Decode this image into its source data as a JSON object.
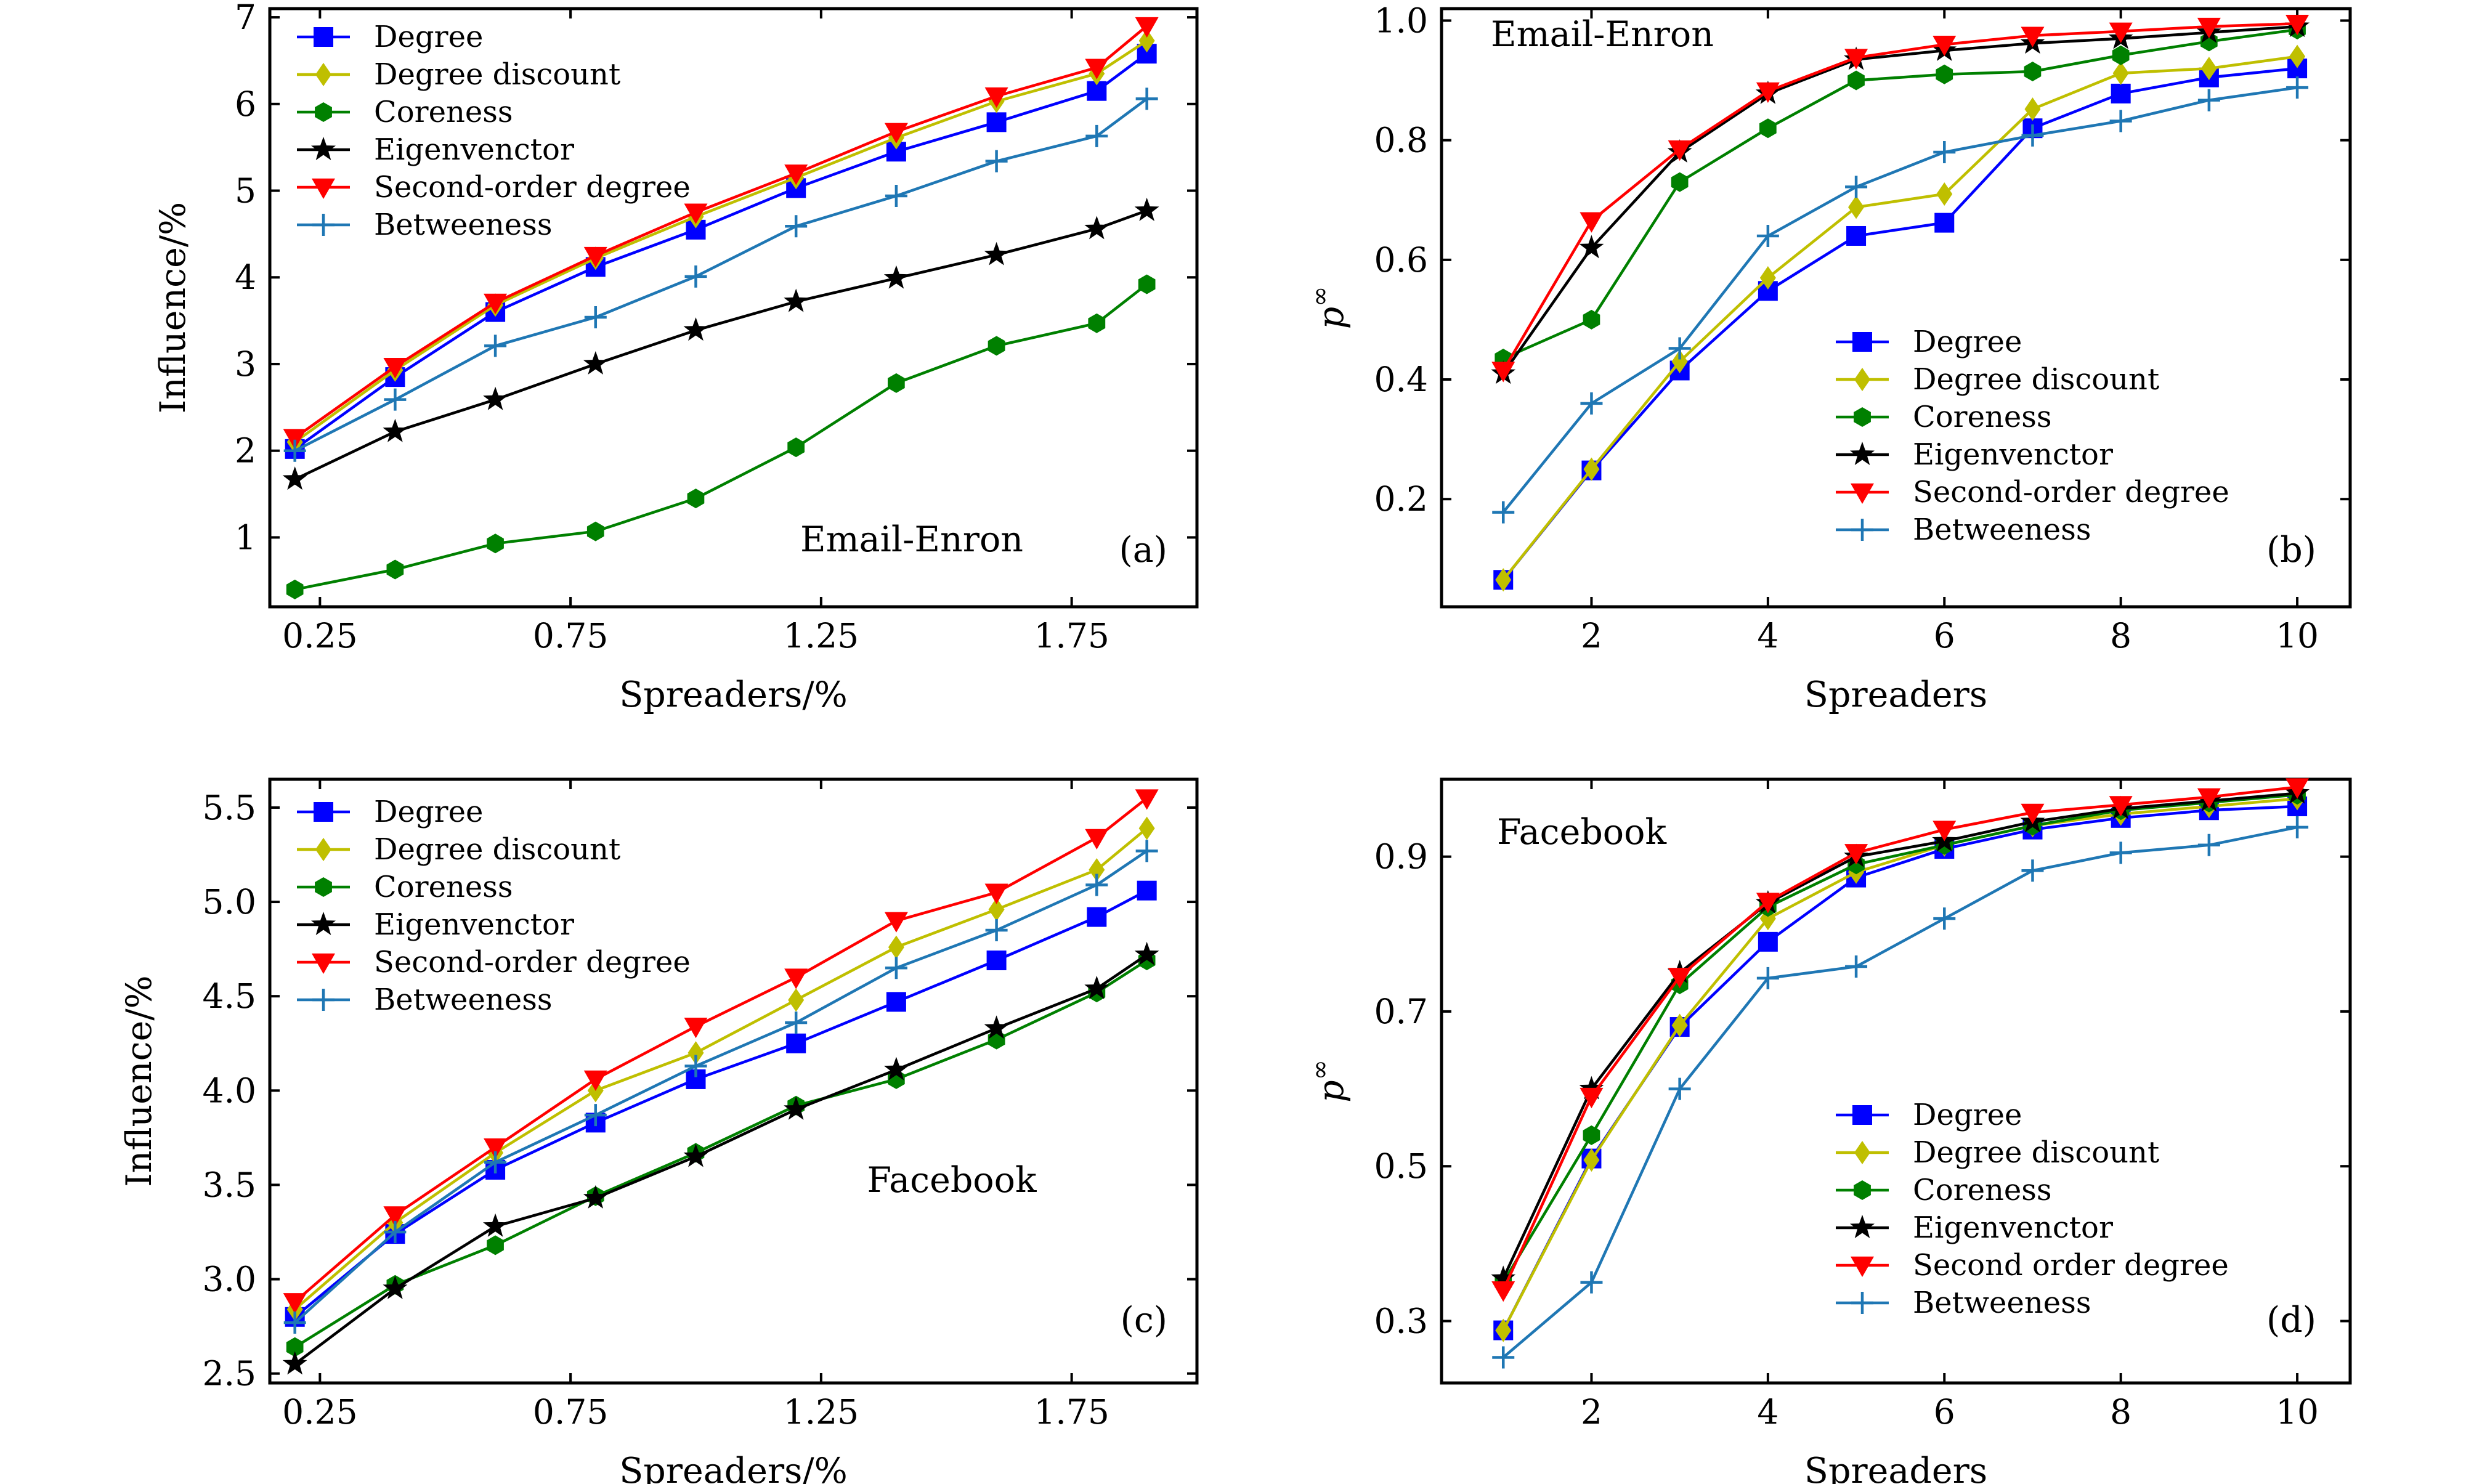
{
  "chart_data": [
    {
      "type": "line",
      "panel": "(a)",
      "annotation": "Email-Enron",
      "xlabel": "Spreaders/%",
      "ylabel": "Influence/%",
      "xlim": [
        0.15,
        2.0
      ],
      "ylim": [
        0.2,
        7.1
      ],
      "xticks": [
        0.25,
        0.75,
        1.25,
        1.75
      ],
      "xtick_labels": [
        "0.25",
        "0.75",
        "1.25",
        "1.75"
      ],
      "yticks": [
        1,
        2,
        3,
        4,
        5,
        6,
        7
      ],
      "ytick_labels": [
        "1",
        "2",
        "3",
        "4",
        "5",
        "6",
        "7"
      ],
      "legend_position": "top-left",
      "x": [
        0.2,
        0.4,
        0.6,
        0.8,
        1.0,
        1.2,
        1.4,
        1.6,
        1.8,
        1.9
      ],
      "series": [
        {
          "name": "Degree",
          "color": "#0000ff",
          "marker": "square",
          "values": [
            2.02,
            2.85,
            3.6,
            4.12,
            4.55,
            5.03,
            5.45,
            5.79,
            6.15,
            6.58
          ]
        },
        {
          "name": "Degree discount",
          "color": "#bfbf00",
          "marker": "diamond",
          "values": [
            2.1,
            2.93,
            3.68,
            4.22,
            4.7,
            5.15,
            5.61,
            6.03,
            6.35,
            6.73
          ]
        },
        {
          "name": "Coreness",
          "color": "#008000",
          "marker": "hexagon",
          "values": [
            0.4,
            0.63,
            0.93,
            1.07,
            1.45,
            2.04,
            2.78,
            3.21,
            3.47,
            3.92
          ]
        },
        {
          "name": "Eigenvenctor",
          "color": "#000000",
          "marker": "star",
          "values": [
            1.67,
            2.22,
            2.59,
            3.0,
            3.39,
            3.72,
            3.99,
            4.26,
            4.56,
            4.77
          ]
        },
        {
          "name": "Second-order degree",
          "color": "#ff0000",
          "marker": "triangle-down",
          "values": [
            2.15,
            2.97,
            3.71,
            4.25,
            4.75,
            5.2,
            5.68,
            6.09,
            6.42,
            6.9
          ]
        },
        {
          "name": "Betweeness",
          "color": "#1f77b4",
          "marker": "plus",
          "values": [
            2.0,
            2.59,
            3.21,
            3.54,
            4.01,
            4.59,
            4.94,
            5.34,
            5.63,
            6.06
          ]
        }
      ]
    },
    {
      "type": "line",
      "panel": "(b)",
      "annotation": "Email-Enron",
      "xlabel": "Spreaders",
      "ylabel": "p",
      "ylabel_superscript": "∞",
      "xlim": [
        0.3,
        10.6
      ],
      "ylim": [
        0.02,
        1.02
      ],
      "xticks": [
        2,
        4,
        6,
        8,
        10
      ],
      "xtick_labels": [
        "2",
        "4",
        "6",
        "8",
        "10"
      ],
      "yticks": [
        0.2,
        0.4,
        0.6,
        0.8,
        1.0
      ],
      "ytick_labels": [
        "0.2",
        "0.4",
        "0.6",
        "0.8",
        "1.0"
      ],
      "legend_position": "center-right",
      "x": [
        1,
        2,
        3,
        4,
        5,
        6,
        7,
        8,
        9,
        10
      ],
      "series": [
        {
          "name": "Degree",
          "color": "#0000ff",
          "marker": "square",
          "values": [
            0.065,
            0.248,
            0.415,
            0.548,
            0.64,
            0.662,
            0.82,
            0.878,
            0.905,
            0.92
          ]
        },
        {
          "name": "Degree discount",
          "color": "#bfbf00",
          "marker": "diamond",
          "values": [
            0.065,
            0.25,
            0.43,
            0.57,
            0.688,
            0.71,
            0.852,
            0.912,
            0.92,
            0.94
          ]
        },
        {
          "name": "Coreness",
          "color": "#008000",
          "marker": "hexagon",
          "values": [
            0.435,
            0.5,
            0.73,
            0.82,
            0.9,
            0.91,
            0.915,
            0.942,
            0.965,
            0.985
          ]
        },
        {
          "name": "Eigenvenctor",
          "color": "#000000",
          "marker": "star",
          "values": [
            0.41,
            0.62,
            0.78,
            0.878,
            0.935,
            0.95,
            0.962,
            0.97,
            0.98,
            0.99
          ]
        },
        {
          "name": "Second-order degree",
          "color": "#ff0000",
          "marker": "triangle-down",
          "values": [
            0.415,
            0.665,
            0.785,
            0.882,
            0.938,
            0.96,
            0.975,
            0.982,
            0.99,
            0.995
          ]
        },
        {
          "name": "Betweeness",
          "color": "#1f77b4",
          "marker": "plus",
          "values": [
            0.178,
            0.36,
            0.452,
            0.64,
            0.722,
            0.78,
            0.808,
            0.832,
            0.867,
            0.888
          ]
        }
      ]
    },
    {
      "type": "line",
      "panel": "(c)",
      "annotation": "Facebook",
      "xlabel": "Spreaders/%",
      "ylabel": "Influence/%",
      "xlim": [
        0.15,
        2.0
      ],
      "ylim": [
        2.45,
        5.65
      ],
      "xticks": [
        0.25,
        0.75,
        1.25,
        1.75
      ],
      "xtick_labels": [
        "0.25",
        "0.75",
        "1.25",
        "1.75"
      ],
      "yticks": [
        2.5,
        3.0,
        3.5,
        4.0,
        4.5,
        5.0,
        5.5
      ],
      "ytick_labels": [
        "2.5",
        "3.0",
        "3.5",
        "4.0",
        "4.5",
        "5.0",
        "5.5"
      ],
      "legend_position": "top-left",
      "x": [
        0.2,
        0.4,
        0.6,
        0.8,
        1.0,
        1.2,
        1.4,
        1.6,
        1.8,
        1.9
      ],
      "series": [
        {
          "name": "Degree",
          "color": "#0000ff",
          "marker": "square",
          "values": [
            2.8,
            3.24,
            3.58,
            3.83,
            4.06,
            4.25,
            4.47,
            4.69,
            4.92,
            5.06
          ]
        },
        {
          "name": "Degree discount",
          "color": "#bfbf00",
          "marker": "diamond",
          "values": [
            2.84,
            3.3,
            3.67,
            4.0,
            4.2,
            4.48,
            4.76,
            4.96,
            5.17,
            5.39
          ]
        },
        {
          "name": "Coreness",
          "color": "#008000",
          "marker": "hexagon",
          "values": [
            2.64,
            2.97,
            3.18,
            3.44,
            3.67,
            3.92,
            4.06,
            4.27,
            4.52,
            4.69
          ]
        },
        {
          "name": "Eigenvenctor",
          "color": "#000000",
          "marker": "star",
          "values": [
            2.55,
            2.95,
            3.28,
            3.43,
            3.65,
            3.9,
            4.11,
            4.33,
            4.54,
            4.72
          ]
        },
        {
          "name": "Second-order degree",
          "color": "#ff0000",
          "marker": "triangle-down",
          "values": [
            2.88,
            3.34,
            3.7,
            4.06,
            4.34,
            4.6,
            4.9,
            5.05,
            5.34,
            5.55
          ]
        },
        {
          "name": "Betweeness",
          "color": "#1f77b4",
          "marker": "plus",
          "values": [
            2.77,
            3.25,
            3.62,
            3.87,
            4.13,
            4.36,
            4.65,
            4.85,
            5.09,
            5.27
          ]
        }
      ]
    },
    {
      "type": "line",
      "panel": "(d)",
      "annotation": "Facebook",
      "xlabel": "Spreaders",
      "ylabel": "p",
      "ylabel_superscript": "∞",
      "xlim": [
        0.3,
        10.6
      ],
      "ylim": [
        0.22,
        1.0
      ],
      "xticks": [
        2,
        4,
        6,
        8,
        10
      ],
      "xtick_labels": [
        "2",
        "4",
        "6",
        "8",
        "10"
      ],
      "yticks": [
        0.3,
        0.5,
        0.7,
        0.9
      ],
      "ytick_labels": [
        "0.3",
        "0.5",
        "0.7",
        "0.9"
      ],
      "legend_position": "center-right",
      "x": [
        1,
        2,
        3,
        4,
        5,
        6,
        7,
        8,
        9,
        10
      ],
      "series": [
        {
          "name": "Degree",
          "color": "#0000ff",
          "marker": "square",
          "values": [
            0.288,
            0.51,
            0.68,
            0.79,
            0.873,
            0.91,
            0.935,
            0.95,
            0.96,
            0.965
          ]
        },
        {
          "name": "Degree discount",
          "color": "#bfbf00",
          "marker": "diamond",
          "values": [
            0.288,
            0.508,
            0.682,
            0.82,
            0.88,
            0.915,
            0.94,
            0.955,
            0.965,
            0.975
          ]
        },
        {
          "name": "Coreness",
          "color": "#008000",
          "marker": "hexagon",
          "values": [
            0.35,
            0.54,
            0.735,
            0.835,
            0.89,
            0.915,
            0.94,
            0.96,
            0.97,
            0.98
          ]
        },
        {
          "name": "Eigenvenctor",
          "color": "#000000",
          "marker": "star",
          "values": [
            0.355,
            0.6,
            0.75,
            0.84,
            0.9,
            0.92,
            0.945,
            0.962,
            0.972,
            0.982
          ]
        },
        {
          "name": "Second order degree",
          "color": "#ff0000",
          "marker": "triangle-down",
          "values": [
            0.34,
            0.59,
            0.745,
            0.842,
            0.905,
            0.935,
            0.957,
            0.967,
            0.977,
            0.99
          ]
        },
        {
          "name": "Betweeness",
          "color": "#1f77b4",
          "marker": "plus",
          "values": [
            0.253,
            0.35,
            0.6,
            0.743,
            0.758,
            0.82,
            0.882,
            0.905,
            0.915,
            0.938
          ]
        }
      ]
    }
  ]
}
